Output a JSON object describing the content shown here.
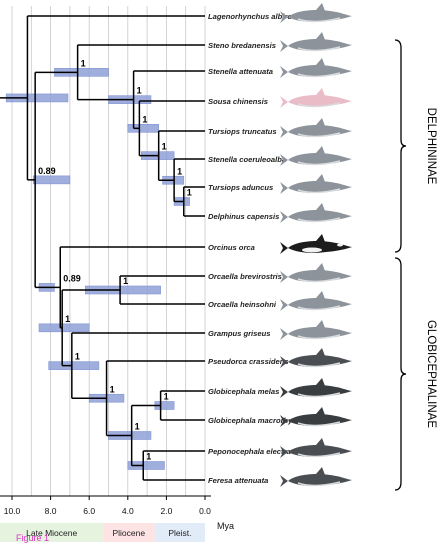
{
  "figure_label": "Figure 1",
  "axis": {
    "unit_label": "Mya",
    "ticks": [
      "10.0",
      "8.0",
      "6.0",
      "4.0",
      "2.0",
      "0.0"
    ]
  },
  "epochs": [
    {
      "label": "Late Miocene",
      "color": "#e6f3df"
    },
    {
      "label": "Pliocene",
      "color": "#fde3e3"
    },
    {
      "label": "Pleist.",
      "color": "#e2ebf8"
    }
  ],
  "taxa": [
    {
      "name": "Lagenorhynchus albirostris",
      "icon": "dolphin-icon"
    },
    {
      "name": "Steno bredanensis",
      "icon": "dolphin-icon"
    },
    {
      "name": "Stenella attenuata",
      "icon": "dolphin-icon"
    },
    {
      "name": "Sousa chinensis",
      "icon": "pink-dolphin-icon"
    },
    {
      "name": "Tursiops truncatus",
      "icon": "dolphin-icon"
    },
    {
      "name": "Stenella coeruleoalba",
      "icon": "dolphin-icon"
    },
    {
      "name": "Tursiops aduncus",
      "icon": "dolphin-icon"
    },
    {
      "name": "Delphinus capensis",
      "icon": "dolphin-icon"
    },
    {
      "name": "Orcinus orca",
      "icon": "orca-icon"
    },
    {
      "name": "Orcaella brevirostris",
      "icon": "dolphin-icon"
    },
    {
      "name": "Orcaella heinsohni",
      "icon": "dolphin-icon"
    },
    {
      "name": "Grampus griseus",
      "icon": "dolphin-icon"
    },
    {
      "name": "Pseudorca crassidens",
      "icon": "dark-dolphin-icon"
    },
    {
      "name": "Globicephala melas",
      "icon": "pilot-whale-icon"
    },
    {
      "name": "Globicephala macrorhynchus",
      "icon": "pilot-whale-icon"
    },
    {
      "name": "Peponocephala electra",
      "icon": "dark-dolphin-icon"
    },
    {
      "name": "Feresa attenuata",
      "icon": "dark-dolphin-icon"
    }
  ],
  "clades": [
    {
      "label": "DELPHININAE"
    },
    {
      "label": "GLOBICEPHALINAE"
    }
  ],
  "support_values": [
    "1",
    "1",
    "1",
    "1",
    "1",
    "0.89",
    "1",
    "0.89",
    "1",
    "1",
    "1",
    "1",
    "1",
    "1",
    "1"
  ],
  "colors": {
    "tree": "#000000",
    "node_bar": "#8fa0d8",
    "node_bar_edge": "#6f84cc",
    "support_text": "#000000",
    "figure_label": "#e030c8",
    "grid": "#c8c8c8"
  }
}
